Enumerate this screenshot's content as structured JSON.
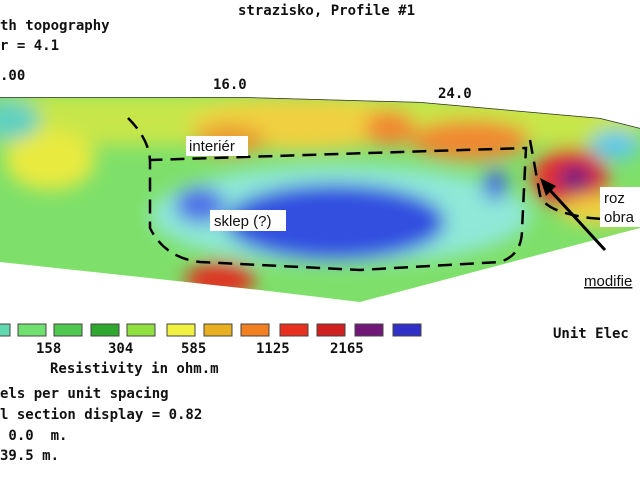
{
  "header": {
    "title": "strazisko, Profile #1",
    "left_line_1": "th topography",
    "left_line_2": "r = 4.1"
  },
  "x_axis": {
    "ticks": [
      ".00",
      "16.0",
      "24.0"
    ]
  },
  "annotations": [
    "interiér",
    "sklep (?)",
    "roz",
    "obra",
    "modifie"
  ],
  "legend": {
    "labels": [
      "158",
      "304",
      "585",
      "1125",
      "2165"
    ],
    "title": "Resistivity in ohm.m",
    "unit": "Unit Elec"
  },
  "footer": {
    "lines": [
      "els per unit spacing",
      "l section display = 0.82",
      " 0.0  m.",
      "39.5 m."
    ]
  }
}
